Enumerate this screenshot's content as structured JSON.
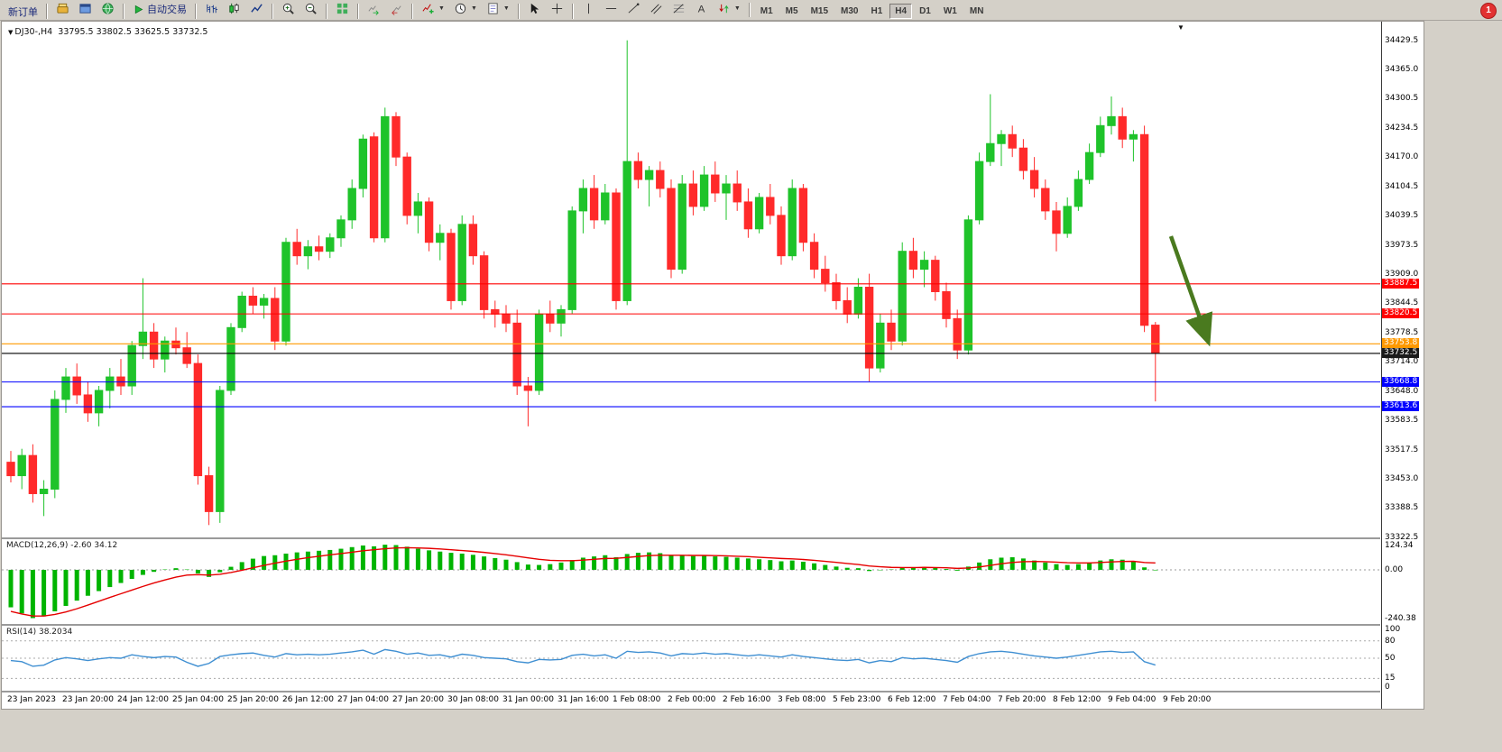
{
  "toolbar": {
    "badge": "1",
    "groups": [
      [
        {
          "name": "new-order-button",
          "label": "新订单"
        }
      ],
      [
        {
          "name": "gold-box-icon",
          "icon": "goldbox"
        },
        {
          "name": "blue-window-icon",
          "icon": "bluewin"
        },
        {
          "name": "green-globe-icon",
          "icon": "globe"
        }
      ],
      [
        {
          "name": "autotrading-button",
          "icon": "play",
          "label": "自动交易"
        }
      ],
      [
        {
          "name": "bar-chart-icon",
          "icon": "bars"
        },
        {
          "name": "candlestick-chart-icon",
          "icon": "candles"
        },
        {
          "name": "line-chart-icon",
          "icon": "linechart"
        }
      ],
      [
        {
          "name": "zoom-in-icon",
          "icon": "zoomin"
        },
        {
          "name": "zoom-out-icon",
          "icon": "zoomout"
        }
      ],
      [
        {
          "name": "tile-windows-icon",
          "icon": "grid"
        }
      ],
      [
        {
          "name": "auto-scroll-icon",
          "icon": "autoscroll"
        },
        {
          "name": "chart-shift-icon",
          "icon": "chartshift"
        }
      ],
      [
        {
          "name": "indicators-button",
          "icon": "indplus",
          "caret": true
        },
        {
          "name": "periods-button",
          "icon": "clock",
          "caret": true
        },
        {
          "name": "templates-button",
          "icon": "template",
          "caret": true
        }
      ],
      [
        {
          "name": "cursor-icon",
          "icon": "cursor"
        },
        {
          "name": "crosshair-icon",
          "icon": "crosshair"
        }
      ],
      [
        {
          "name": "vertical-line-icon",
          "icon": "vline"
        },
        {
          "name": "horizontal-line-icon",
          "icon": "hline"
        },
        {
          "name": "trendline-icon",
          "icon": "trend"
        },
        {
          "name": "equidistant-channel-icon",
          "icon": "channel"
        },
        {
          "name": "fibonacci-icon",
          "icon": "fibo"
        },
        {
          "name": "text-label-icon",
          "icon": "textA"
        },
        {
          "name": "arrows-icon",
          "icon": "arrows",
          "caret": true
        }
      ]
    ],
    "timeframes": [
      "M1",
      "M5",
      "M15",
      "M30",
      "H1",
      "H4",
      "D1",
      "W1",
      "MN"
    ],
    "active_timeframe": "H4"
  },
  "chart": {
    "title": {
      "symbol_period": "DJ30-,H4",
      "ohlc": "33795.5 33802.5 33625.5 33732.5"
    },
    "colors": {
      "up": "#1fc32a",
      "down": "#ff2a2a",
      "arrow": "#4a7a1f"
    },
    "price_axis": {
      "max": 34429.5,
      "min": 33322.5,
      "labels": [
        34429.5,
        34365.0,
        34300.5,
        34234.5,
        34170.0,
        34104.5,
        34039.5,
        33973.5,
        33909.0,
        33844.5,
        33778.5,
        33714.0,
        33648.0,
        33583.5,
        33517.5,
        33453.0,
        33388.5,
        33322.5
      ]
    },
    "hlines": [
      {
        "price": 33887.5,
        "label": "33887.5",
        "color": "#ff0000",
        "tag_bg": "#ff0000"
      },
      {
        "price": 33820.5,
        "label": "33820.5",
        "color": "#ff0000",
        "tag_bg": "#ff0000"
      },
      {
        "price": 33753.8,
        "label": "33753.8",
        "color": "#ff9900",
        "tag_bg": "#ff9900"
      },
      {
        "price": 33732.5,
        "label": "33732.5",
        "color": "#000000",
        "tag_bg": "#1a1a1a",
        "current": true
      },
      {
        "price": 33668.8,
        "label": "33668.8",
        "color": "#0000ff",
        "tag_bg": "#0000ff"
      },
      {
        "price": 33613.6,
        "label": "33613.6",
        "color": "#0000ff",
        "tag_bg": "#0000ff"
      }
    ],
    "time_axis": [
      "23 Jan 2023",
      "23 Jan 20:00",
      "24 Jan 12:00",
      "25 Jan 04:00",
      "25 Jan 20:00",
      "26 Jan 12:00",
      "27 Jan 04:00",
      "27 Jan 20:00",
      "30 Jan 08:00",
      "31 Jan 00:00",
      "31 Jan 16:00",
      "1 Feb 08:00",
      "2 Feb 00:00",
      "2 Feb 16:00",
      "3 Feb 08:00",
      "5 Feb 23:00",
      "6 Feb 12:00",
      "7 Feb 04:00",
      "7 Feb 20:00",
      "8 Feb 12:00",
      "9 Feb 04:00",
      "9 Feb 20:00"
    ],
    "candles": [
      [
        33490,
        33515,
        33445,
        33460
      ],
      [
        33460,
        33520,
        33430,
        33505
      ],
      [
        33505,
        33530,
        33400,
        33420
      ],
      [
        33420,
        33450,
        33370,
        33430
      ],
      [
        33430,
        33650,
        33410,
        33630
      ],
      [
        33630,
        33700,
        33600,
        33680
      ],
      [
        33680,
        33710,
        33620,
        33640
      ],
      [
        33640,
        33670,
        33580,
        33600
      ],
      [
        33600,
        33660,
        33570,
        33650
      ],
      [
        33650,
        33700,
        33610,
        33680
      ],
      [
        33680,
        33720,
        33640,
        33660
      ],
      [
        33660,
        33760,
        33640,
        33750
      ],
      [
        33750,
        33900,
        33720,
        33780
      ],
      [
        33780,
        33800,
        33700,
        33720
      ],
      [
        33720,
        33770,
        33690,
        33760
      ],
      [
        33760,
        33790,
        33730,
        33745
      ],
      [
        33745,
        33780,
        33700,
        33710
      ],
      [
        33710,
        33730,
        33440,
        33460
      ],
      [
        33460,
        33480,
        33350,
        33380
      ],
      [
        33380,
        33660,
        33355,
        33650
      ],
      [
        33650,
        33800,
        33640,
        33790
      ],
      [
        33790,
        33870,
        33780,
        33860
      ],
      [
        33860,
        33880,
        33820,
        33840
      ],
      [
        33840,
        33865,
        33810,
        33855
      ],
      [
        33855,
        33880,
        33740,
        33760
      ],
      [
        33760,
        33990,
        33750,
        33980
      ],
      [
        33980,
        34010,
        33930,
        33950
      ],
      [
        33950,
        33985,
        33920,
        33970
      ],
      [
        33970,
        33995,
        33940,
        33960
      ],
      [
        33960,
        34000,
        33945,
        33990
      ],
      [
        33990,
        34040,
        33970,
        34030
      ],
      [
        34030,
        34120,
        34010,
        34100
      ],
      [
        34100,
        34220,
        34080,
        34210
      ],
      [
        34215,
        34225,
        33980,
        33990
      ],
      [
        33990,
        34280,
        33980,
        34260
      ],
      [
        34260,
        34270,
        34150,
        34170
      ],
      [
        34170,
        34180,
        34020,
        34040
      ],
      [
        34040,
        34090,
        34000,
        34070
      ],
      [
        34070,
        34080,
        33960,
        33980
      ],
      [
        33980,
        34020,
        33940,
        34000
      ],
      [
        34000,
        34010,
        33830,
        33850
      ],
      [
        33850,
        34040,
        33840,
        34020
      ],
      [
        34020,
        34040,
        33930,
        33950
      ],
      [
        33950,
        33960,
        33810,
        33830
      ],
      [
        33830,
        33850,
        33790,
        33820
      ],
      [
        33820,
        33840,
        33780,
        33800
      ],
      [
        33800,
        33830,
        33640,
        33660
      ],
      [
        33660,
        33680,
        33570,
        33650
      ],
      [
        33650,
        33830,
        33640,
        33820
      ],
      [
        33820,
        33850,
        33780,
        33800
      ],
      [
        33800,
        33840,
        33770,
        33830
      ],
      [
        33830,
        34060,
        33820,
        34050
      ],
      [
        34050,
        34120,
        34000,
        34100
      ],
      [
        34100,
        34130,
        34010,
        34030
      ],
      [
        34030,
        34110,
        34020,
        34090
      ],
      [
        34090,
        34100,
        33830,
        33850
      ],
      [
        33850,
        34430,
        33840,
        34160
      ],
      [
        34160,
        34180,
        34100,
        34120
      ],
      [
        34120,
        34150,
        34060,
        34140
      ],
      [
        34140,
        34160,
        34080,
        34100
      ],
      [
        34100,
        34120,
        33900,
        33920
      ],
      [
        33920,
        34130,
        33910,
        34110
      ],
      [
        34110,
        34140,
        34040,
        34060
      ],
      [
        34060,
        34150,
        34050,
        34130
      ],
      [
        34130,
        34160,
        34070,
        34090
      ],
      [
        34090,
        34130,
        34030,
        34110
      ],
      [
        34110,
        34140,
        34050,
        34070
      ],
      [
        34070,
        34100,
        33990,
        34010
      ],
      [
        34010,
        34090,
        34000,
        34080
      ],
      [
        34080,
        34110,
        34020,
        34040
      ],
      [
        34040,
        34060,
        33930,
        33950
      ],
      [
        33950,
        34120,
        33940,
        34100
      ],
      [
        34100,
        34110,
        33960,
        33980
      ],
      [
        33980,
        34000,
        33900,
        33920
      ],
      [
        33920,
        33950,
        33870,
        33890
      ],
      [
        33890,
        33910,
        33830,
        33850
      ],
      [
        33850,
        33880,
        33800,
        33820
      ],
      [
        33820,
        33900,
        33810,
        33880
      ],
      [
        33880,
        33910,
        33670,
        33700
      ],
      [
        33700,
        33820,
        33690,
        33800
      ],
      [
        33800,
        33830,
        33740,
        33760
      ],
      [
        33760,
        33980,
        33750,
        33960
      ],
      [
        33960,
        33990,
        33900,
        33920
      ],
      [
        33920,
        33960,
        33880,
        33940
      ],
      [
        33940,
        33950,
        33850,
        33870
      ],
      [
        33870,
        33890,
        33790,
        33810
      ],
      [
        33810,
        33830,
        33720,
        33740
      ],
      [
        33740,
        34040,
        33730,
        34030
      ],
      [
        34030,
        34180,
        34020,
        34160
      ],
      [
        34160,
        34310,
        34150,
        34200
      ],
      [
        34200,
        34230,
        34150,
        34220
      ],
      [
        34220,
        34240,
        34170,
        34190
      ],
      [
        34190,
        34210,
        34120,
        34140
      ],
      [
        34140,
        34170,
        34080,
        34100
      ],
      [
        34100,
        34120,
        34030,
        34050
      ],
      [
        34050,
        34070,
        33960,
        34000
      ],
      [
        34000,
        34080,
        33990,
        34060
      ],
      [
        34060,
        34140,
        34050,
        34120
      ],
      [
        34120,
        34200,
        34110,
        34180
      ],
      [
        34180,
        34260,
        34170,
        34240
      ],
      [
        34240,
        34305,
        34220,
        34260
      ],
      [
        34260,
        34280,
        34190,
        34210
      ],
      [
        34210,
        34230,
        34160,
        34220
      ],
      [
        34220,
        34240,
        33780,
        33795
      ],
      [
        33795.5,
        33802.5,
        33625.5,
        33732.5
      ]
    ]
  },
  "macd": {
    "label": "MACD(12,26,9)",
    "value_main": "-2.60",
    "value_signal": "34.12",
    "scale": {
      "max": "124.34",
      "zero": "0.00",
      "min": "-240.38"
    },
    "max": 124.34,
    "min": -240.38,
    "hist_color": "#00b400",
    "signal_color": "#e60000",
    "histogram": [
      -185,
      -215,
      -238,
      -230,
      -205,
      -178,
      -152,
      -128,
      -105,
      -85,
      -65,
      -45,
      -25,
      -10,
      2,
      8,
      2,
      -18,
      -35,
      -12,
      15,
      38,
      55,
      68,
      72,
      80,
      86,
      90,
      94,
      98,
      104,
      112,
      120,
      116,
      124,
      122,
      114,
      104,
      96,
      90,
      84,
      80,
      74,
      66,
      58,
      50,
      38,
      26,
      24,
      28,
      36,
      48,
      60,
      66,
      72,
      62,
      78,
      84,
      86,
      82,
      72,
      70,
      68,
      70,
      66,
      64,
      60,
      56,
      52,
      48,
      42,
      46,
      40,
      32,
      24,
      16,
      10,
      8,
      -6,
      -2,
      2,
      10,
      12,
      14,
      10,
      4,
      -4,
      16,
      36,
      52,
      60,
      62,
      56,
      46,
      36,
      28,
      24,
      28,
      36,
      46,
      52,
      50,
      42,
      12,
      -2.6
    ],
    "signal": [
      -205,
      -218,
      -228,
      -228,
      -220,
      -208,
      -192,
      -174,
      -155,
      -136,
      -118,
      -100,
      -82,
      -65,
      -50,
      -36,
      -26,
      -24,
      -26,
      -22,
      -13,
      -2,
      10,
      22,
      33,
      43,
      52,
      60,
      67,
      74,
      80,
      87,
      94,
      99,
      104,
      108,
      109,
      108,
      106,
      103,
      99,
      95,
      91,
      86,
      80,
      74,
      67,
      59,
      52,
      47,
      45,
      45,
      48,
      52,
      56,
      57,
      61,
      66,
      70,
      72,
      72,
      72,
      71,
      71,
      70,
      69,
      67,
      65,
      62,
      59,
      56,
      54,
      51,
      47,
      42,
      37,
      31,
      26,
      19,
      15,
      12,
      11,
      11,
      12,
      11,
      10,
      7,
      9,
      14,
      22,
      30,
      36,
      40,
      41,
      40,
      38,
      35,
      34,
      34,
      36,
      39,
      41,
      42,
      36,
      34.12
    ]
  },
  "rsi": {
    "label": "RSI(14)",
    "value": "38.2034",
    "line_color": "#3f8fd2",
    "levels": [
      100,
      80,
      50,
      15,
      0
    ],
    "values": [
      46,
      44,
      36,
      38,
      47,
      51,
      49,
      46,
      49,
      51,
      50,
      56,
      53,
      51,
      53,
      52,
      43,
      36,
      41,
      53,
      56,
      58,
      59,
      55,
      52,
      58,
      56,
      57,
      56,
      57,
      59,
      61,
      64,
      57,
      65,
      62,
      57,
      59,
      55,
      56,
      52,
      57,
      55,
      51,
      50,
      49,
      44,
      42,
      48,
      47,
      48,
      55,
      57,
      54,
      56,
      50,
      62,
      60,
      61,
      59,
      54,
      58,
      57,
      59,
      57,
      58,
      56,
      54,
      56,
      54,
      52,
      56,
      53,
      51,
      49,
      47,
      46,
      48,
      42,
      46,
      44,
      51,
      49,
      50,
      48,
      46,
      43,
      53,
      58,
      61,
      62,
      60,
      57,
      54,
      52,
      50,
      52,
      55,
      58,
      61,
      62,
      60,
      61,
      44,
      38.2
    ]
  }
}
